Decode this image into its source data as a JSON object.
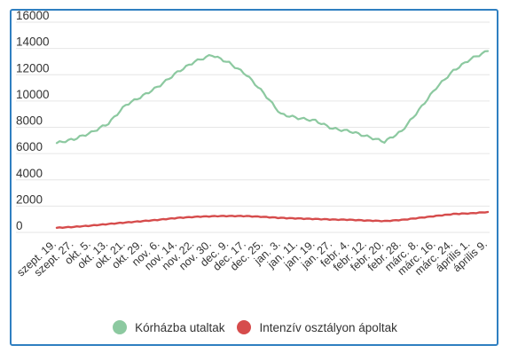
{
  "chart_data": {
    "type": "line",
    "title": "",
    "xlabel": "",
    "ylabel": "",
    "ylim": [
      0,
      16000
    ],
    "yticks": [
      0,
      2000,
      4000,
      6000,
      8000,
      10000,
      12000,
      14000,
      16000
    ],
    "grid": true,
    "legend_position": "bottom",
    "categories": [
      "szept. 19.",
      "szept. 27.",
      "okt. 5.",
      "okt. 13.",
      "okt. 21.",
      "okt. 29.",
      "nov. 6.",
      "nov. 14.",
      "nov. 22.",
      "nov. 30.",
      "dec. 9.",
      "dec. 17.",
      "dec. 25.",
      "jan. 3.",
      "jan. 11.",
      "jan. 19.",
      "jan. 27.",
      "febr. 4.",
      "febr. 12.",
      "febr. 20.",
      "febr. 28.",
      "márc. 8.",
      "márc. 16.",
      "márc. 24.",
      "április 1.",
      "április 9."
    ],
    "series": [
      {
        "name": "Kórházba utaltak",
        "color": "#8cc9a0",
        "values": [
          6800,
          7100,
          7600,
          8300,
          9700,
          10400,
          11200,
          12200,
          13000,
          13500,
          12900,
          12000,
          10600,
          9000,
          8700,
          8500,
          7900,
          7700,
          7300,
          6900,
          7700,
          9300,
          11000,
          12300,
          13200,
          13800
        ]
      },
      {
        "name": "Intenzív osztályon ápoltak",
        "color": "#d64c4c",
        "values": [
          350,
          420,
          520,
          640,
          750,
          860,
          970,
          1100,
          1180,
          1230,
          1250,
          1240,
          1180,
          1100,
          1060,
          1020,
          980,
          960,
          900,
          860,
          950,
          1100,
          1250,
          1400,
          1450,
          1550
        ]
      }
    ]
  }
}
